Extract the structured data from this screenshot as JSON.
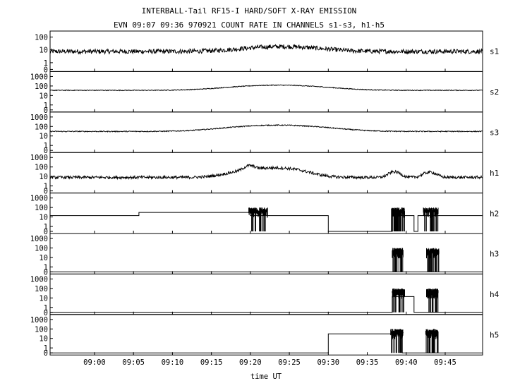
{
  "chart_data": {
    "type": "line",
    "title": "INTERBALL-Tail RF15-I HARD/SOFT X-RAY EMISSION",
    "subtitle": "EVN 09:07 09:36 970921  COUNT RATE IN CHANNELS s1-s3, h1-h5",
    "xlabel": "time UT",
    "x_tick_labels": [
      "09:00",
      "09:05",
      "09:10",
      "09:15",
      "09:20",
      "09:25",
      "09:30",
      "09:35",
      "09:40",
      "09:45"
    ],
    "x_tick_minutes": [
      0,
      5,
      10,
      15,
      20,
      25,
      30,
      35,
      40,
      45
    ],
    "xlim_minutes": [
      -5.7,
      49.8
    ],
    "yscale": "log",
    "grid": false,
    "panels": [
      {
        "name": "s1",
        "y_ticks": [
          "100",
          "10",
          "1",
          "0"
        ],
        "ylim": [
          0.3,
          200
        ],
        "kind": "noisy",
        "base": 7.5,
        "noise": 0.35,
        "bumps": [
          {
            "t": 24,
            "w": 6,
            "amp": 1.4
          }
        ],
        "steps": []
      },
      {
        "name": "s2",
        "y_ticks": [
          "1000",
          "100",
          "10",
          "1",
          "0"
        ],
        "ylim": [
          0.3,
          2000
        ],
        "kind": "noisy",
        "base": 35,
        "noise": 0.08,
        "bumps": [
          {
            "t": 23.5,
            "w": 7,
            "amp": 2.5
          }
        ],
        "steps": []
      },
      {
        "name": "s3",
        "y_ticks": [
          "1000",
          "100",
          "10",
          "1",
          "0"
        ],
        "ylim": [
          0.3,
          2000
        ],
        "kind": "noisy",
        "base": 30,
        "noise": 0.1,
        "bumps": [
          {
            "t": 23.5,
            "w": 7,
            "amp": 3.6
          }
        ],
        "steps": []
      },
      {
        "name": "h1",
        "y_ticks": [
          "1000",
          "100",
          "10",
          "1",
          "0"
        ],
        "ylim": [
          0.3,
          2000
        ],
        "kind": "noisy",
        "base": 8,
        "noise": 0.3,
        "bumps": [
          {
            "t": 22,
            "w": 4,
            "amp": 8
          },
          {
            "t": 19.8,
            "w": 0.8,
            "amp": 1.5
          },
          {
            "t": 38.5,
            "w": 0.9,
            "amp": 2.8
          },
          {
            "t": 43,
            "w": 1.0,
            "amp": 2.5
          },
          {
            "t": 26.5,
            "w": 3,
            "amp": 0.7
          }
        ],
        "steps": []
      },
      {
        "name": "h2",
        "y_ticks": [
          "1000",
          "100",
          "10",
          "1",
          "0"
        ],
        "ylim": [
          0.3,
          2000
        ],
        "kind": "steps",
        "steps": [
          [
            -5.7,
            14
          ],
          [
            5.7,
            30
          ],
          [
            20.0,
            14
          ],
          [
            30.0,
            0.3
          ],
          [
            38.2,
            14
          ],
          [
            41.0,
            0.3
          ],
          [
            41.5,
            14
          ],
          [
            49.8,
            14
          ]
        ],
        "bursts": [
          [
            19.8,
            22.2
          ],
          [
            38.1,
            39.8
          ],
          [
            42.2,
            44.1
          ]
        ]
      },
      {
        "name": "h3",
        "y_ticks": [
          "1000",
          "100",
          "10",
          "1",
          "0"
        ],
        "ylim": [
          0.3,
          2000
        ],
        "kind": "steps",
        "steps": [
          [
            -5.7,
            0.3
          ],
          [
            49.8,
            0.3
          ]
        ],
        "bursts": [
          [
            38.2,
            39.6
          ],
          [
            42.6,
            44.2
          ]
        ]
      },
      {
        "name": "h4",
        "y_ticks": [
          "1000",
          "100",
          "10",
          "1",
          "0"
        ],
        "ylim": [
          0.3,
          2000
        ],
        "kind": "steps",
        "steps": [
          [
            -5.7,
            0.3
          ],
          [
            38.2,
            14
          ],
          [
            41.0,
            0.3
          ],
          [
            49.8,
            0.3
          ]
        ],
        "bursts": [
          [
            38.2,
            39.8
          ],
          [
            42.6,
            44.1
          ]
        ]
      },
      {
        "name": "h5",
        "y_ticks": [
          "1000",
          "100",
          "10",
          "1",
          "0"
        ],
        "ylim": [
          0.3,
          2000
        ],
        "kind": "steps",
        "steps": [
          [
            -5.7,
            0.3
          ],
          [
            30.0,
            30
          ],
          [
            39.5,
            0.3
          ],
          [
            49.8,
            0.3
          ]
        ],
        "bursts": [
          [
            38.0,
            39.6
          ],
          [
            42.5,
            44.1
          ]
        ]
      }
    ]
  }
}
